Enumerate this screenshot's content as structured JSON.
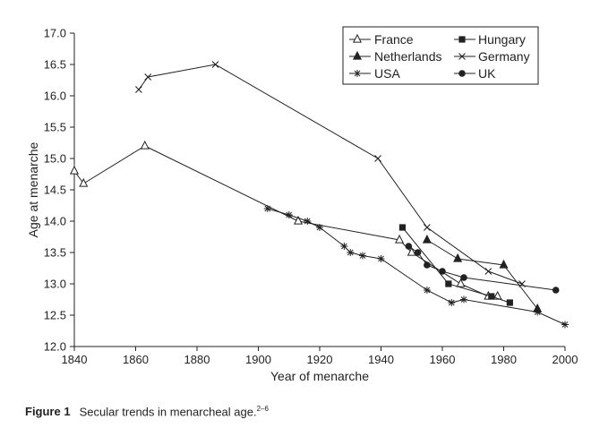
{
  "chart_data": {
    "type": "line",
    "xlabel": "Year of menarche",
    "ylabel": "Age at menarche",
    "xlim": [
      1840,
      2000
    ],
    "ylim": [
      12.0,
      17.0
    ],
    "xticks": [
      "1840",
      "1860",
      "1880",
      "1900",
      "1920",
      "1940",
      "1960",
      "1980",
      "2000"
    ],
    "yticks": [
      "12.0",
      "12.5",
      "13.0",
      "13.5",
      "14.0",
      "14.5",
      "15.0",
      "15.5",
      "16.0",
      "16.5",
      "17.0"
    ],
    "grid": false,
    "legend_position": "top-right",
    "series": [
      {
        "name": "France",
        "marker": "triangle-open",
        "x": [
          1840,
          1843,
          1863,
          1913,
          1946,
          1950,
          1966,
          1975,
          1978
        ],
        "y": [
          14.8,
          14.6,
          15.2,
          14.0,
          13.7,
          13.5,
          13.0,
          12.8,
          12.8
        ]
      },
      {
        "name": "Hungary",
        "marker": "square-filled",
        "x": [
          1947,
          1962,
          1976,
          1982
        ],
        "y": [
          13.9,
          13.0,
          12.8,
          12.7
        ]
      },
      {
        "name": "Netherlands",
        "marker": "triangle-filled",
        "x": [
          1955,
          1965,
          1980,
          1991
        ],
        "y": [
          13.7,
          13.4,
          13.3,
          12.6
        ]
      },
      {
        "name": "Germany",
        "marker": "x",
        "x": [
          1861,
          1864,
          1886,
          1939,
          1955,
          1975,
          1986
        ],
        "y": [
          16.1,
          16.3,
          16.5,
          15.0,
          13.9,
          13.2,
          13.0
        ]
      },
      {
        "name": "USA",
        "marker": "star",
        "x": [
          1903,
          1910,
          1916,
          1920,
          1928,
          1930,
          1934,
          1940,
          1955,
          1963,
          1967,
          1991,
          2000
        ],
        "y": [
          14.2,
          14.1,
          14.0,
          13.9,
          13.6,
          13.5,
          13.45,
          13.4,
          12.9,
          12.7,
          12.75,
          12.55,
          12.35
        ]
      },
      {
        "name": "UK",
        "marker": "circle-filled",
        "x": [
          1949,
          1952,
          1955,
          1960,
          1967,
          1997
        ],
        "y": [
          13.6,
          13.5,
          13.3,
          13.2,
          13.1,
          12.9
        ]
      }
    ]
  },
  "caption": {
    "label": "Figure 1",
    "text": "Secular trends in menarcheal age.",
    "refs": "2–6"
  }
}
